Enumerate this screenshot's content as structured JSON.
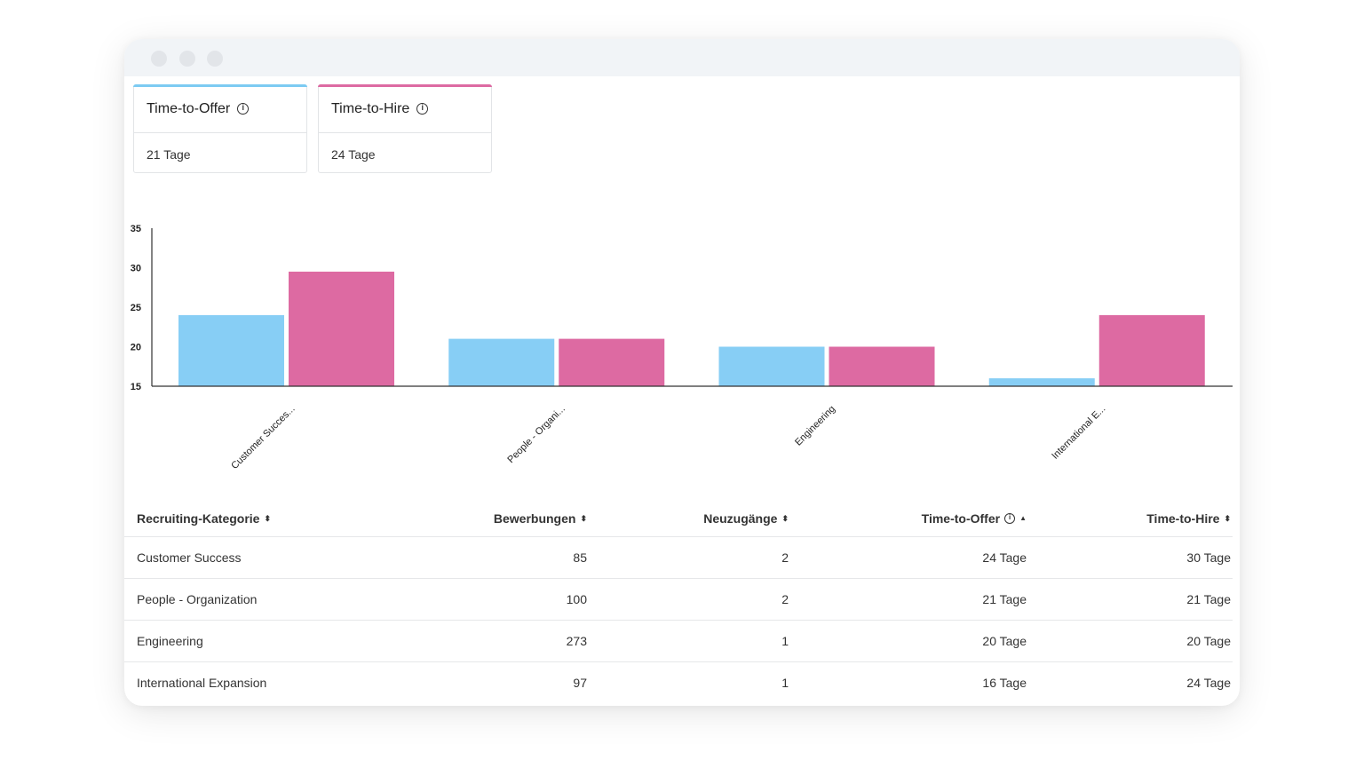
{
  "cards": [
    {
      "title": "Time-to-Offer",
      "value": "21 Tage",
      "accent": "#7ccbf2"
    },
    {
      "title": "Time-to-Hire",
      "value": "24 Tage",
      "accent": "#dd6aa2"
    }
  ],
  "chart_data": {
    "type": "bar",
    "categories": [
      "Customer Succes...",
      "People - Organi...",
      "Engineering",
      "International E..."
    ],
    "series": [
      {
        "values": [
          24,
          21,
          20,
          16
        ],
        "color": "#87cef5"
      },
      {
        "values": [
          29.5,
          21,
          20,
          24
        ],
        "color": "#dd6aa2"
      }
    ],
    "ylim": [
      15,
      35
    ],
    "yticks": [
      "15",
      "20",
      "25",
      "30",
      "35"
    ],
    "grid": false
  },
  "table": {
    "headers": [
      "Recruiting-Kategorie",
      "Bewerbungen",
      "Neuzugänge",
      "Time-to-Offer",
      "Time-to-Hire"
    ],
    "sort_icons": [
      "sort-both",
      "sort-both",
      "sort-both",
      "sort-up",
      "sort-both"
    ],
    "rows": [
      [
        "Customer Success",
        "85",
        "2",
        "24 Tage",
        "30 Tage"
      ],
      [
        "People - Organization",
        "100",
        "2",
        "21 Tage",
        "21 Tage"
      ],
      [
        "Engineering",
        "273",
        "1",
        "20 Tage",
        "20 Tage"
      ],
      [
        "International Expansion",
        "97",
        "1",
        "16 Tage",
        "24 Tage"
      ]
    ]
  }
}
